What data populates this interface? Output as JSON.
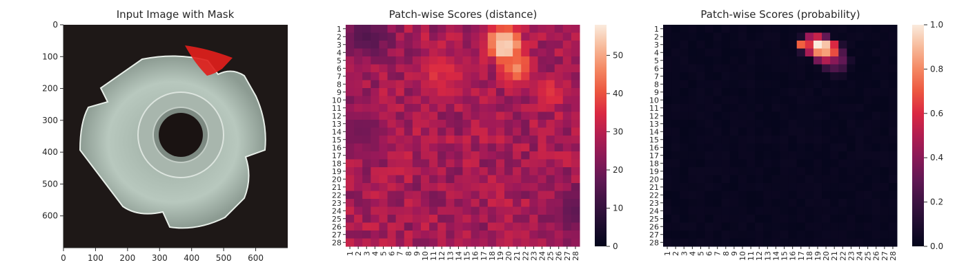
{
  "colors": {
    "background": "#ffffff",
    "text": "#262626",
    "photo_background": "#1e1817",
    "metal": "#b8c8be",
    "mask": "#e0201c"
  },
  "chart_data": [
    {
      "type": "image",
      "title": "Input Image with Mask",
      "x_ticks": [
        0,
        100,
        200,
        300,
        400,
        500,
        600
      ],
      "y_ticks": [
        0,
        100,
        200,
        300,
        400,
        500,
        600
      ],
      "xlim": [
        0,
        700
      ],
      "ylim": [
        700,
        0
      ],
      "image_content": "metal-tee-nut-with-red-defect-mask"
    },
    {
      "type": "heatmap",
      "title": "Patch-wise Scores (distance)",
      "rows": [
        "1",
        "2",
        "3",
        "4",
        "5",
        "6",
        "7",
        "8",
        "9",
        "10",
        "11",
        "12",
        "13",
        "14",
        "15",
        "16",
        "17",
        "18",
        "19",
        "20",
        "21",
        "22",
        "23",
        "24",
        "25",
        "26",
        "27",
        "28"
      ],
      "cols": [
        "1",
        "2",
        "3",
        "4",
        "5",
        "6",
        "7",
        "8",
        "9",
        "10",
        "11",
        "12",
        "13",
        "14",
        "15",
        "16",
        "17",
        "18",
        "19",
        "20",
        "21",
        "22",
        "23",
        "24",
        "25",
        "26",
        "27",
        "28"
      ],
      "colormap": "rocket",
      "colorbar": {
        "min": 0,
        "max": 58,
        "ticks": [
          0,
          10,
          20,
          30,
          40,
          50
        ]
      },
      "base_value": 27,
      "hotspots": [
        {
          "row": 3,
          "col": 19.5,
          "value": 58,
          "spread": 2.3
        },
        {
          "row": 6,
          "col": 21,
          "value": 45,
          "spread": 2.6
        },
        {
          "row": 7,
          "col": 12,
          "value": 35,
          "spread": 4.5
        },
        {
          "row": 9,
          "col": 25,
          "value": 36,
          "spread": 3.0
        }
      ],
      "cool_regions": [
        {
          "row": 2,
          "col": 3,
          "value": 15,
          "spread": 2.0
        },
        {
          "row": 24,
          "col": 28,
          "value": 17,
          "spread": 2.0
        },
        {
          "row": 14,
          "col": 2,
          "value": 20,
          "spread": 2.0
        }
      ]
    },
    {
      "type": "heatmap",
      "title": "Patch-wise Scores (probability)",
      "rows": [
        "1",
        "2",
        "3",
        "4",
        "5",
        "6",
        "7",
        "8",
        "9",
        "10",
        "11",
        "12",
        "13",
        "14",
        "15",
        "16",
        "17",
        "18",
        "19",
        "20",
        "21",
        "22",
        "23",
        "24",
        "25",
        "26",
        "27",
        "28"
      ],
      "cols": [
        "1",
        "2",
        "3",
        "4",
        "5",
        "6",
        "7",
        "8",
        "9",
        "10",
        "11",
        "12",
        "13",
        "14",
        "15",
        "16",
        "17",
        "18",
        "19",
        "20",
        "21",
        "22",
        "23",
        "24",
        "25",
        "26",
        "27",
        "28"
      ],
      "colormap": "rocket",
      "colorbar": {
        "min": 0,
        "max": 1,
        "ticks": [
          0.0,
          0.2,
          0.4,
          0.6,
          0.8,
          1.0
        ],
        "tick_labels": [
          "0.0",
          "0.2",
          "0.4",
          "0.6",
          "0.8",
          "1.0"
        ]
      },
      "cells": [
        {
          "row": 2,
          "col": 18,
          "value": 0.45
        },
        {
          "row": 2,
          "col": 19,
          "value": 0.55
        },
        {
          "row": 2,
          "col": 20,
          "value": 0.3
        },
        {
          "row": 3,
          "col": 17,
          "value": 0.72
        },
        {
          "row": 3,
          "col": 18,
          "value": 0.62
        },
        {
          "row": 3,
          "col": 19,
          "value": 1.0
        },
        {
          "row": 3,
          "col": 20,
          "value": 0.92
        },
        {
          "row": 3,
          "col": 21,
          "value": 0.6
        },
        {
          "row": 3,
          "col": 22,
          "value": 0.1
        },
        {
          "row": 4,
          "col": 18,
          "value": 0.48
        },
        {
          "row": 4,
          "col": 19,
          "value": 0.8
        },
        {
          "row": 4,
          "col": 20,
          "value": 0.85
        },
        {
          "row": 4,
          "col": 21,
          "value": 0.68
        },
        {
          "row": 4,
          "col": 22,
          "value": 0.25
        },
        {
          "row": 5,
          "col": 19,
          "value": 0.35
        },
        {
          "row": 5,
          "col": 20,
          "value": 0.5
        },
        {
          "row": 5,
          "col": 21,
          "value": 0.4
        },
        {
          "row": 5,
          "col": 22,
          "value": 0.3
        },
        {
          "row": 5,
          "col": 23,
          "value": 0.08
        },
        {
          "row": 6,
          "col": 20,
          "value": 0.18
        },
        {
          "row": 6,
          "col": 21,
          "value": 0.25
        },
        {
          "row": 6,
          "col": 22,
          "value": 0.2
        },
        {
          "row": 2,
          "col": 17,
          "value": 0.08
        },
        {
          "row": 4,
          "col": 17,
          "value": 0.12
        },
        {
          "row": 7,
          "col": 21,
          "value": 0.07
        },
        {
          "row": 7,
          "col": 22,
          "value": 0.06
        }
      ]
    }
  ]
}
